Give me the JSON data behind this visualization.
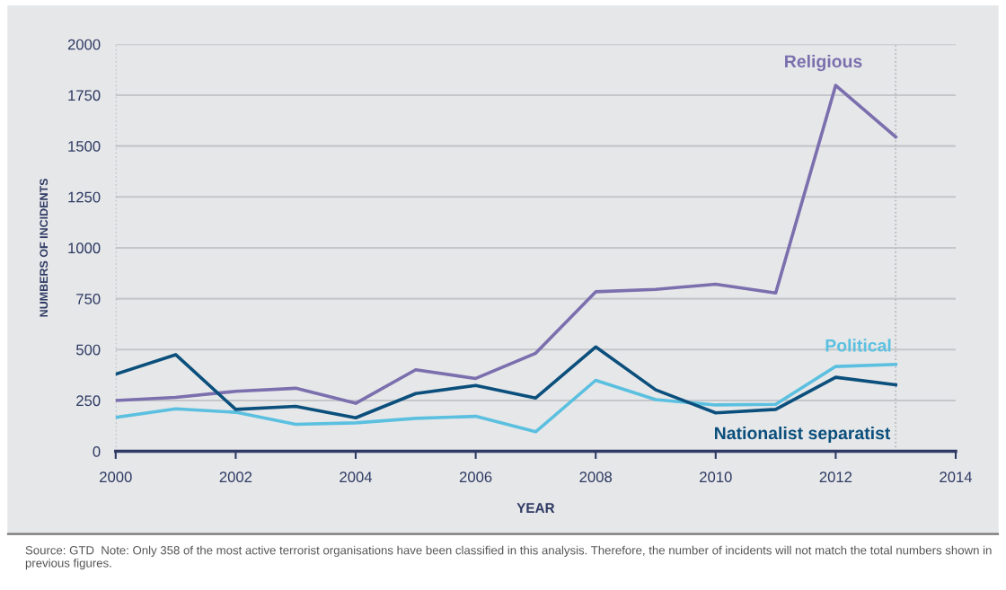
{
  "chart_data": {
    "type": "line",
    "xlabel": "YEAR",
    "ylabel": "NUMBERS OF INCIDENTS",
    "x": [
      2000,
      2001,
      2002,
      2003,
      2004,
      2005,
      2006,
      2007,
      2008,
      2009,
      2010,
      2011,
      2012,
      2013
    ],
    "series": [
      {
        "name": "Religious",
        "color": "#7b6fae",
        "values": [
          250,
          265,
          295,
          310,
          236,
          401,
          358,
          482,
          784,
          796,
          821,
          778,
          1798,
          1545
        ]
      },
      {
        "name": "Political",
        "color": "#5bc0e0",
        "values": [
          167,
          209,
          192,
          133,
          140,
          162,
          172,
          96,
          349,
          254,
          228,
          231,
          417,
          427
        ]
      },
      {
        "name": "Nationalist separatist",
        "color": "#0b4f7c",
        "values": [
          379,
          475,
          206,
          221,
          165,
          284,
          324,
          262,
          513,
          302,
          189,
          206,
          364,
          327
        ]
      }
    ],
    "xlim": [
      2000,
      2014
    ],
    "xticks": [
      2000,
      2002,
      2004,
      2006,
      2008,
      2010,
      2012,
      2014
    ],
    "ylim": [
      0,
      2000
    ],
    "yticks": [
      0,
      250,
      500,
      750,
      1000,
      1250,
      1500,
      1750,
      2000
    ],
    "ref_lines": [
      {
        "axis": "x",
        "value": 2000,
        "color": "#b0b3b8",
        "line_style": "dotted"
      },
      {
        "axis": "x",
        "value": 2013,
        "color": "#b0b3b8",
        "line_style": "dotted"
      }
    ],
    "grid": "y",
    "legend": false,
    "marker": "none",
    "line_style": "solid",
    "annotations": [
      "Source: GTD  Note: Only 358 of the most active terrorist organisations have been classified in this analysis. Therefore, the number of incidents will not match the total numbers shown in previous figures."
    ]
  }
}
